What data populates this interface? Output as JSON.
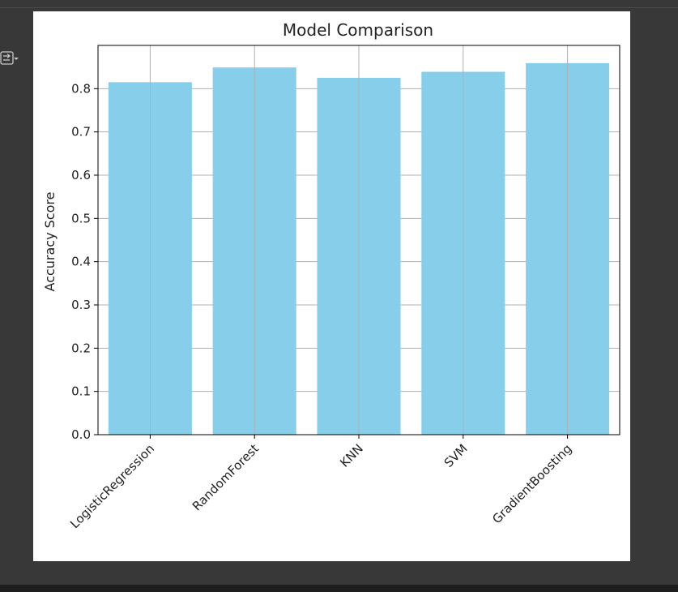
{
  "output_toggle": {
    "icon": "output-collapse-icon"
  },
  "chart_data": {
    "type": "bar",
    "title": "Model Comparison",
    "xlabel": "",
    "ylabel": "Accuracy Score",
    "categories": [
      "LogisticRegression",
      "RandomForest",
      "KNN",
      "SVM",
      "GradientBoosting"
    ],
    "values": [
      0.815,
      0.849,
      0.825,
      0.839,
      0.859
    ],
    "ylim": [
      0,
      0.9
    ],
    "yticks": [
      0.0,
      0.1,
      0.2,
      0.3,
      0.4,
      0.5,
      0.6,
      0.7,
      0.8
    ],
    "ytick_labels": [
      "0.0",
      "0.1",
      "0.2",
      "0.3",
      "0.4",
      "0.5",
      "0.6",
      "0.7",
      "0.8"
    ],
    "grid": true,
    "bar_color": "#87ceeb",
    "grid_color": "#b0b0b0",
    "text_color": "#222222"
  }
}
